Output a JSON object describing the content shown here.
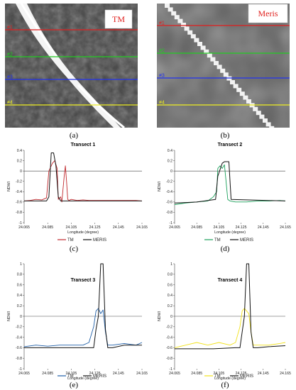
{
  "images": [
    {
      "name": "TM",
      "badge": "TM",
      "caption": "(a)",
      "transect_labels": [
        "#1",
        "#2",
        "#3",
        "#4"
      ],
      "transect_colors": [
        "#e01e1e",
        "#22cc22",
        "#2233ee",
        "#eeee22"
      ]
    },
    {
      "name": "Meris",
      "badge": "Meris",
      "caption": "(b)",
      "transect_labels": [
        "#1",
        "#2",
        "#3",
        "#4"
      ],
      "transect_colors": [
        "#e01e1e",
        "#22cc22",
        "#2233ee",
        "#eeee22"
      ]
    }
  ],
  "chart_data": [
    {
      "type": "line",
      "title": "Transect 1",
      "caption": "(c)",
      "xlabel": "Longitude (degree)",
      "ylabel": "NDWI",
      "xlim": [
        24.065,
        24.165
      ],
      "ylim": [
        -1,
        0.4
      ],
      "xticks": [
        24.065,
        24.085,
        24.105,
        24.125,
        24.145,
        24.165
      ],
      "xtick_labels": [
        "24.065",
        "24.085",
        "24.105",
        "24.125",
        "24.145",
        "24.165"
      ],
      "yticks": [
        -1,
        -0.8,
        -0.6,
        -0.4,
        -0.2,
        0,
        0.2,
        0.4
      ],
      "ytick_labels": [
        "-1",
        "-0.8",
        "-0.6",
        "-0.4",
        "-0.2",
        "0",
        "0.2",
        "0.4"
      ],
      "legend_position": "bottom",
      "series": [
        {
          "name": "TM",
          "color": "#c0282d",
          "x": [
            24.065,
            24.07,
            24.075,
            24.08,
            24.084,
            24.086,
            24.087,
            24.089,
            24.091,
            24.093,
            24.094,
            24.096,
            24.097,
            24.099,
            24.1,
            24.101,
            24.102,
            24.103,
            24.105,
            24.11,
            24.115,
            24.12,
            24.13,
            24.14,
            24.15,
            24.16,
            24.165
          ],
          "y": [
            -0.58,
            -0.57,
            -0.55,
            -0.56,
            -0.52,
            0.0,
            0.05,
            0.15,
            0.2,
            0.05,
            -0.55,
            -0.5,
            -0.6,
            -0.1,
            0.1,
            -0.2,
            -0.55,
            -0.57,
            -0.55,
            -0.57,
            -0.56,
            -0.57,
            -0.57,
            -0.57,
            -0.57,
            -0.57,
            -0.58
          ]
        },
        {
          "name": "MERIS",
          "color": "#111111",
          "x": [
            24.065,
            24.084,
            24.086,
            24.088,
            24.09,
            24.092,
            24.094,
            24.096,
            24.1,
            24.165
          ],
          "y": [
            -0.58,
            -0.58,
            -0.5,
            0.35,
            0.35,
            0.1,
            -0.5,
            -0.58,
            -0.58,
            -0.58
          ]
        }
      ]
    },
    {
      "type": "line",
      "title": "Transect 2",
      "caption": "(d)",
      "xlabel": "Longitude (degree)",
      "ylabel": "NDWI",
      "xlim": [
        24.065,
        24.165
      ],
      "ylim": [
        -1,
        0.4
      ],
      "xticks": [
        24.065,
        24.085,
        24.105,
        24.125,
        24.145,
        24.165
      ],
      "xtick_labels": [
        "24.065",
        "24.085",
        "24.105",
        "24.125",
        "24.145",
        "24.165"
      ],
      "yticks": [
        -1,
        -0.8,
        -0.6,
        -0.4,
        -0.2,
        0,
        0.2,
        0.4
      ],
      "ytick_labels": [
        "-1",
        "-0.8",
        "-0.6",
        "-0.4",
        "-0.2",
        "0",
        "0.2",
        "0.4"
      ],
      "legend_position": "bottom",
      "series": [
        {
          "name": "TM",
          "color": "#1aa05a",
          "x": [
            24.065,
            24.075,
            24.085,
            24.095,
            24.1,
            24.103,
            24.104,
            24.106,
            24.108,
            24.11,
            24.111,
            24.113,
            24.115,
            24.12,
            24.13,
            24.14,
            24.15,
            24.16,
            24.165
          ],
          "y": [
            -0.65,
            -0.62,
            -0.6,
            -0.58,
            -0.5,
            -0.4,
            0.05,
            0.1,
            0.05,
            0.12,
            -0.1,
            -0.55,
            -0.58,
            -0.6,
            -0.6,
            -0.58,
            -0.58,
            -0.57,
            -0.58
          ]
        },
        {
          "name": "MERIS",
          "color": "#111111",
          "x": [
            24.065,
            24.085,
            24.102,
            24.104,
            24.108,
            24.11,
            24.114,
            24.116,
            24.165
          ],
          "y": [
            -0.62,
            -0.6,
            -0.55,
            -0.1,
            0.15,
            0.18,
            0.18,
            -0.55,
            -0.58
          ]
        }
      ]
    },
    {
      "type": "line",
      "title": "Transect 3",
      "caption": "(e)",
      "xlabel": "Longitude (degree)",
      "ylabel": "NDWI",
      "xlim": [
        24.065,
        24.165
      ],
      "ylim": [
        -1,
        1
      ],
      "xticks": [
        24.065,
        24.085,
        24.105,
        24.125,
        24.145,
        24.165
      ],
      "xtick_labels": [
        "24.065",
        "24.085",
        "24.105",
        "24.125",
        "24.145",
        "24.165"
      ],
      "yticks": [
        -1,
        -0.8,
        -0.6,
        -0.4,
        -0.2,
        0,
        0.2,
        0.4,
        0.6,
        0.8,
        1
      ],
      "ytick_labels": [
        "-1",
        "-0.8",
        "-0.6",
        "-0.4",
        "-0.2",
        "0",
        "0.2",
        "0.4",
        "0.6",
        "0.8",
        "1"
      ],
      "legend_position": "bottom",
      "series": [
        {
          "name": "TM",
          "color": "#1f5fa8",
          "x": [
            24.065,
            24.075,
            24.085,
            24.095,
            24.105,
            24.115,
            24.12,
            24.124,
            24.126,
            24.128,
            24.13,
            24.132,
            24.134,
            24.136,
            24.14,
            24.15,
            24.16,
            24.165
          ],
          "y": [
            -0.58,
            -0.55,
            -0.57,
            -0.55,
            -0.55,
            -0.55,
            -0.5,
            -0.2,
            0.1,
            0.15,
            0.05,
            0.12,
            -0.3,
            -0.55,
            -0.55,
            -0.52,
            -0.55,
            -0.5
          ]
        },
        {
          "name": "MERIS",
          "color": "#111111",
          "x": [
            24.065,
            24.1,
            24.12,
            24.124,
            24.126,
            24.128,
            24.13,
            24.132,
            24.134,
            24.136,
            24.14,
            24.15,
            24.165
          ],
          "y": [
            -0.6,
            -0.6,
            -0.6,
            -0.6,
            -0.25,
            0.0,
            1.0,
            1.0,
            -0.25,
            -0.6,
            -0.6,
            -0.55,
            -0.55
          ]
        }
      ]
    },
    {
      "type": "line",
      "title": "Transect 4",
      "caption": "(f)",
      "xlabel": "Longitude (degree)",
      "ylabel": "NDWI",
      "xlim": [
        24.065,
        24.165
      ],
      "ylim": [
        -1,
        1
      ],
      "xticks": [
        24.065,
        24.085,
        24.105,
        24.125,
        24.145,
        24.165
      ],
      "xtick_labels": [
        "24.065",
        "24.085",
        "24.105",
        "24.125",
        "24.145",
        "24.165"
      ],
      "yticks": [
        -1,
        -0.8,
        -0.6,
        -0.4,
        -0.2,
        0,
        0.2,
        0.4,
        0.6,
        0.8,
        1
      ],
      "ytick_labels": [
        "-1",
        "-0.8",
        "-0.6",
        "-0.4",
        "-0.2",
        "0",
        "0.2",
        "0.4",
        "0.6",
        "0.8",
        "1"
      ],
      "legend_position": "bottom",
      "series": [
        {
          "name": "TM",
          "color": "#f2e21b",
          "x": [
            24.065,
            24.075,
            24.085,
            24.095,
            24.105,
            24.115,
            24.12,
            24.124,
            24.126,
            24.128,
            24.13,
            24.132,
            24.134,
            24.136,
            24.14,
            24.15,
            24.16,
            24.165
          ],
          "y": [
            -0.6,
            -0.55,
            -0.5,
            -0.55,
            -0.5,
            -0.55,
            -0.5,
            -0.2,
            0.1,
            0.15,
            0.1,
            0.05,
            -0.3,
            -0.55,
            -0.55,
            -0.55,
            -0.52,
            -0.5
          ]
        },
        {
          "name": "MERIS",
          "color": "#111111",
          "x": [
            24.065,
            24.1,
            24.12,
            24.124,
            24.126,
            24.128,
            24.13,
            24.132,
            24.134,
            24.136,
            24.14,
            24.15,
            24.165
          ],
          "y": [
            -0.62,
            -0.62,
            -0.6,
            -0.6,
            -0.3,
            0.0,
            1.0,
            1.0,
            -0.3,
            -0.6,
            -0.6,
            -0.58,
            -0.56
          ]
        }
      ]
    }
  ]
}
